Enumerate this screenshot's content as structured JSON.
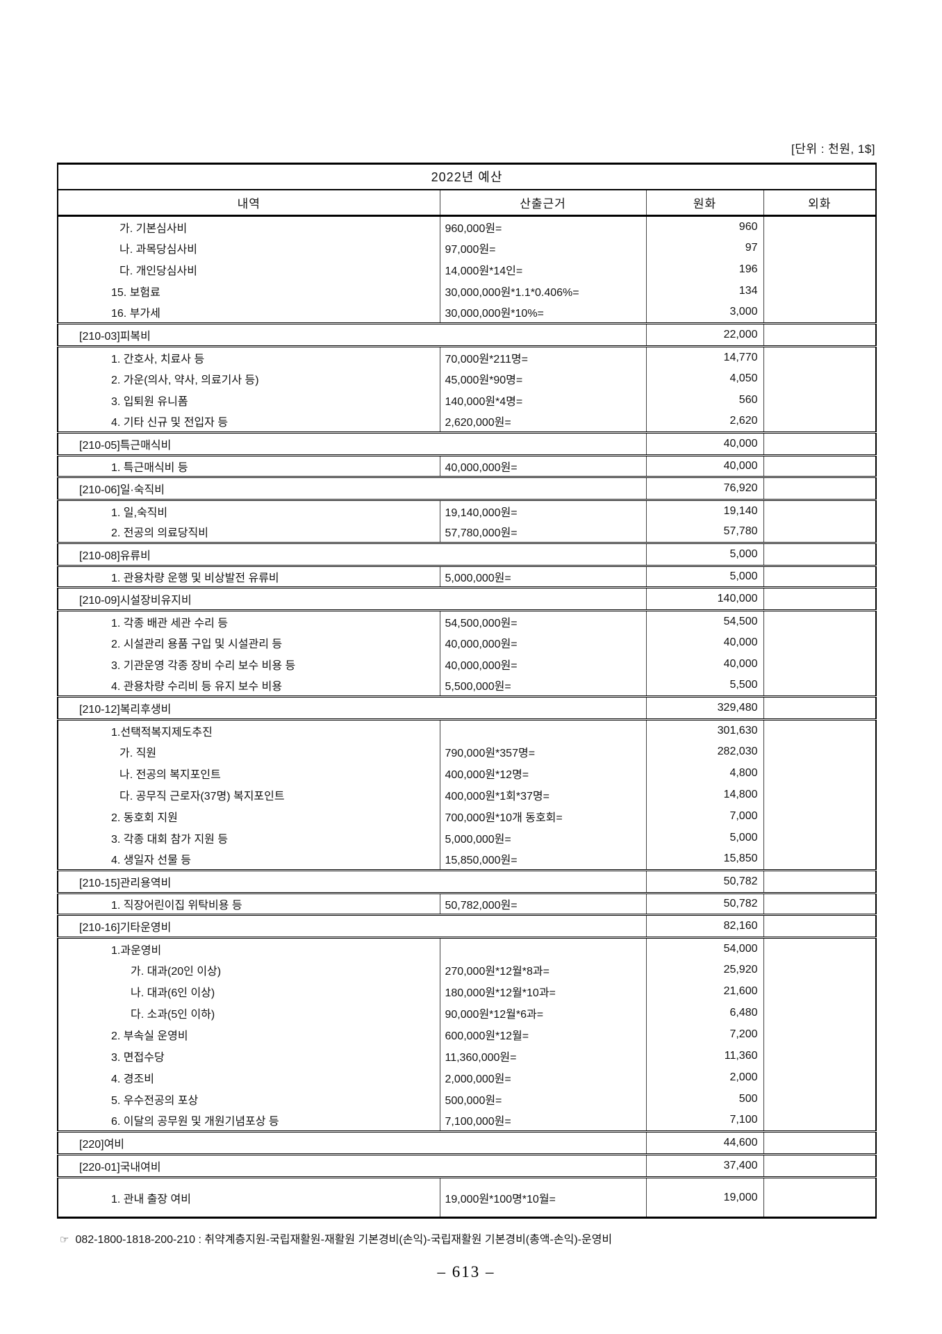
{
  "unit_label": "[단위 : 천원, 1$]",
  "table": {
    "title": "2022년 예산",
    "columns": [
      "내역",
      "산출근거",
      "원화",
      "외화"
    ],
    "rows": [
      {
        "type": "item",
        "indent": 2,
        "name": "가. 기본심사비",
        "calc": "960,000원=",
        "krw": "960",
        "fx": ""
      },
      {
        "type": "item",
        "indent": 2,
        "name": "나. 과목당심사비",
        "calc": "97,000원=",
        "krw": "97",
        "fx": ""
      },
      {
        "type": "item",
        "indent": 2,
        "name": "다. 개인당심사비",
        "calc": "14,000원*14인=",
        "krw": "196",
        "fx": ""
      },
      {
        "type": "item",
        "indent": 1,
        "name": "15. 보험료",
        "calc": "30,000,000원*1.1*0.406%=",
        "krw": "134",
        "fx": ""
      },
      {
        "type": "item",
        "indent": 1,
        "name": "16. 부가세",
        "calc": "30,000,000원*10%=",
        "krw": "3,000",
        "fx": ""
      },
      {
        "type": "section",
        "name": "[210-03]피복비",
        "krw": "22,000",
        "fx": ""
      },
      {
        "type": "item",
        "indent": 1,
        "name": "1. 간호사, 치료사 등",
        "calc": "70,000원*211명=",
        "krw": "14,770",
        "fx": ""
      },
      {
        "type": "item",
        "indent": 1,
        "name": "2. 가운(의사, 약사, 의료기사 등)",
        "calc": "45,000원*90명=",
        "krw": "4,050",
        "fx": ""
      },
      {
        "type": "item",
        "indent": 1,
        "name": "3. 입퇴원 유니폼",
        "calc": "140,000원*4명=",
        "krw": "560",
        "fx": ""
      },
      {
        "type": "item",
        "indent": 1,
        "name": "4. 기타 신규 및 전입자 등",
        "calc": "2,620,000원=",
        "krw": "2,620",
        "fx": ""
      },
      {
        "type": "section",
        "name": "[210-05]특근매식비",
        "krw": "40,000",
        "fx": ""
      },
      {
        "type": "item",
        "indent": 1,
        "name": "1. 특근매식비 등",
        "calc": "40,000,000원=",
        "krw": "40,000",
        "fx": ""
      },
      {
        "type": "section",
        "name": "[210-06]일·숙직비",
        "krw": "76,920",
        "fx": ""
      },
      {
        "type": "item",
        "indent": 1,
        "name": "1. 일,숙직비",
        "calc": "19,140,000원=",
        "krw": "19,140",
        "fx": ""
      },
      {
        "type": "item",
        "indent": 1,
        "name": "2. 전공의 의료당직비",
        "calc": "57,780,000원=",
        "krw": "57,780",
        "fx": ""
      },
      {
        "type": "section",
        "name": "[210-08]유류비",
        "krw": "5,000",
        "fx": ""
      },
      {
        "type": "item",
        "indent": 1,
        "name": "1. 관용차량 운행 및 비상발전 유류비",
        "calc": "5,000,000원=",
        "krw": "5,000",
        "fx": ""
      },
      {
        "type": "section",
        "name": "[210-09]시설장비유지비",
        "krw": "140,000",
        "fx": ""
      },
      {
        "type": "item",
        "indent": 1,
        "name": "1. 각종 배관 세관 수리 등",
        "calc": "54,500,000원=",
        "krw": "54,500",
        "fx": ""
      },
      {
        "type": "item",
        "indent": 1,
        "name": "2. 시설관리 용품 구입 및 시설관리 등",
        "calc": "40,000,000원=",
        "krw": "40,000",
        "fx": ""
      },
      {
        "type": "item",
        "indent": 1,
        "name": "3. 기관운영 각종 장비 수리 보수 비용 등",
        "calc": "40,000,000원=",
        "krw": "40,000",
        "fx": ""
      },
      {
        "type": "item",
        "indent": 1,
        "name": "4. 관용차량 수리비 등 유지 보수 비용",
        "calc": "5,500,000원=",
        "krw": "5,500",
        "fx": ""
      },
      {
        "type": "section",
        "name": "[210-12]복리후생비",
        "krw": "329,480",
        "fx": ""
      },
      {
        "type": "item",
        "indent": 1,
        "name": "1.선택적복지제도추진",
        "calc": "",
        "krw": "301,630",
        "fx": ""
      },
      {
        "type": "item",
        "indent": 2,
        "name": "가. 직원",
        "calc": "790,000원*357명=",
        "krw": "282,030",
        "fx": ""
      },
      {
        "type": "item",
        "indent": 2,
        "name": "나. 전공의 복지포인트",
        "calc": "400,000원*12명=",
        "krw": "4,800",
        "fx": ""
      },
      {
        "type": "item",
        "indent": 2,
        "name": "다. 공무직 근로자(37명) 복지포인트",
        "calc": "400,000원*1회*37명=",
        "krw": "14,800",
        "fx": ""
      },
      {
        "type": "item",
        "indent": 1,
        "name": "2. 동호회 지원",
        "calc": "700,000원*10개 동호회=",
        "krw": "7,000",
        "fx": ""
      },
      {
        "type": "item",
        "indent": 1,
        "name": "3. 각종 대회 참가 지원 등",
        "calc": "5,000,000원=",
        "krw": "5,000",
        "fx": ""
      },
      {
        "type": "item",
        "indent": 1,
        "name": "4. 생일자 선물 등",
        "calc": "15,850,000원=",
        "krw": "15,850",
        "fx": ""
      },
      {
        "type": "section",
        "name": "[210-15]관리용역비",
        "krw": "50,782",
        "fx": ""
      },
      {
        "type": "item",
        "indent": 1,
        "name": "1. 직장어린이집 위탁비용 등",
        "calc": "50,782,000원=",
        "krw": "50,782",
        "fx": ""
      },
      {
        "type": "section",
        "name": "[210-16]기타운영비",
        "krw": "82,160",
        "fx": ""
      },
      {
        "type": "item",
        "indent": 1,
        "name": "1.과운영비",
        "calc": "",
        "krw": "54,000",
        "fx": ""
      },
      {
        "type": "item",
        "indent": 3,
        "name": "가. 대과(20인 이상)",
        "calc": "270,000원*12월*8과=",
        "krw": "25,920",
        "fx": ""
      },
      {
        "type": "item",
        "indent": 3,
        "name": "나. 대과(6인 이상)",
        "calc": "180,000원*12월*10과=",
        "krw": "21,600",
        "fx": ""
      },
      {
        "type": "item",
        "indent": 3,
        "name": "다. 소과(5인 이하)",
        "calc": "90,000원*12월*6과=",
        "krw": "6,480",
        "fx": ""
      },
      {
        "type": "item",
        "indent": 1,
        "name": "2. 부속실 운영비",
        "calc": "600,000원*12월=",
        "krw": "7,200",
        "fx": ""
      },
      {
        "type": "item",
        "indent": 1,
        "name": "3. 면접수당",
        "calc": "11,360,000원=",
        "krw": "11,360",
        "fx": ""
      },
      {
        "type": "item",
        "indent": 1,
        "name": "4. 경조비",
        "calc": "2,000,000원=",
        "krw": "2,000",
        "fx": ""
      },
      {
        "type": "item",
        "indent": 1,
        "name": "5. 우수전공의 포상",
        "calc": "500,000원=",
        "krw": "500",
        "fx": ""
      },
      {
        "type": "item",
        "indent": 1,
        "name": "6. 이달의 공무원 및 개원기념포상 등",
        "calc": "7,100,000원=",
        "krw": "7,100",
        "fx": ""
      },
      {
        "type": "section",
        "name": "[220]여비",
        "krw": "44,600",
        "fx": ""
      },
      {
        "type": "section",
        "name": "[220-01]국내여비",
        "krw": "37,400",
        "fx": ""
      },
      {
        "type": "item",
        "indent": 1,
        "name": "1. 관내 출장 여비",
        "calc": "19,000원*100명*10월=",
        "krw": "19,000",
        "fx": "",
        "tall": true
      }
    ]
  },
  "footnote": {
    "symbol": "☞",
    "text": "082-1800-1818-200-210 : 취약계층지원-국립재활원-재활원 기본경비(손익)-국립재활원 기본경비(총액-손익)-운영비"
  },
  "page_number": "– 613 –"
}
